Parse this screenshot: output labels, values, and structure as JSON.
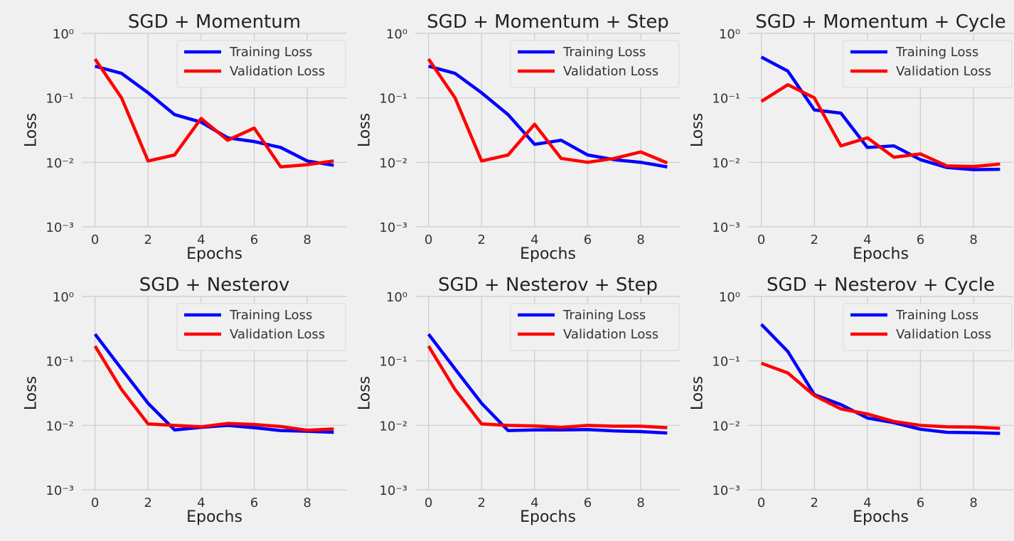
{
  "chart_data": [
    {
      "type": "line",
      "title": "SGD + Momentum",
      "xlabel": "Epochs",
      "ylabel": "Loss",
      "yscale": "log",
      "ylim": [
        0.001,
        1
      ],
      "xlim": [
        -0.5,
        9.5
      ],
      "grid": true,
      "legend": "top-right",
      "x": [
        0,
        1,
        2,
        3,
        4,
        5,
        6,
        7,
        8,
        9
      ],
      "series": [
        {
          "name": "Training Loss",
          "color": "#0000ff",
          "values": [
            0.31,
            0.24,
            0.12,
            0.055,
            0.042,
            0.024,
            0.021,
            0.017,
            0.0105,
            0.009
          ]
        },
        {
          "name": "Validation Loss",
          "color": "#ff0000",
          "values": [
            0.4,
            0.1,
            0.0105,
            0.013,
            0.048,
            0.022,
            0.034,
            0.0085,
            0.0092,
            0.0105
          ]
        }
      ]
    },
    {
      "type": "line",
      "title": "SGD + Momentum + Step",
      "xlabel": "Epochs",
      "ylabel": "Loss",
      "yscale": "log",
      "ylim": [
        0.001,
        1
      ],
      "xlim": [
        -0.5,
        9.5
      ],
      "grid": true,
      "legend": "top-right",
      "x": [
        0,
        1,
        2,
        3,
        4,
        5,
        6,
        7,
        8,
        9
      ],
      "series": [
        {
          "name": "Training Loss",
          "color": "#0000ff",
          "values": [
            0.31,
            0.24,
            0.12,
            0.055,
            0.019,
            0.022,
            0.013,
            0.011,
            0.01,
            0.0085
          ]
        },
        {
          "name": "Validation Loss",
          "color": "#ff0000",
          "values": [
            0.4,
            0.1,
            0.0105,
            0.013,
            0.039,
            0.0115,
            0.01,
            0.0115,
            0.0145,
            0.0098
          ]
        }
      ]
    },
    {
      "type": "line",
      "title": "SGD + Momentum + Cycle",
      "xlabel": "Epochs",
      "ylabel": "Loss",
      "yscale": "log",
      "ylim": [
        0.001,
        1
      ],
      "xlim": [
        -0.5,
        9.5
      ],
      "grid": true,
      "legend": "top-right",
      "x": [
        0,
        1,
        2,
        3,
        4,
        5,
        6,
        7,
        8,
        9
      ],
      "series": [
        {
          "name": "Training Loss",
          "color": "#0000ff",
          "values": [
            0.43,
            0.26,
            0.065,
            0.058,
            0.017,
            0.018,
            0.011,
            0.0083,
            0.0077,
            0.0078
          ]
        },
        {
          "name": "Validation Loss",
          "color": "#ff0000",
          "values": [
            0.088,
            0.16,
            0.1,
            0.018,
            0.024,
            0.012,
            0.0135,
            0.0088,
            0.0086,
            0.0094
          ]
        }
      ]
    },
    {
      "type": "line",
      "title": "SGD + Nesterov",
      "xlabel": "Epochs",
      "ylabel": "Loss",
      "yscale": "log",
      "ylim": [
        0.001,
        1
      ],
      "xlim": [
        -0.5,
        9.5
      ],
      "grid": true,
      "legend": "top-right",
      "x": [
        0,
        1,
        2,
        3,
        4,
        5,
        6,
        7,
        8,
        9
      ],
      "series": [
        {
          "name": "Training Loss",
          "color": "#0000ff",
          "values": [
            0.26,
            0.075,
            0.022,
            0.0085,
            0.0093,
            0.01,
            0.0092,
            0.0083,
            0.0081,
            0.0078
          ]
        },
        {
          "name": "Validation Loss",
          "color": "#ff0000",
          "values": [
            0.17,
            0.036,
            0.0105,
            0.01,
            0.0095,
            0.0107,
            0.0103,
            0.0096,
            0.0084,
            0.0088
          ]
        }
      ]
    },
    {
      "type": "line",
      "title": "SGD + Nesterov + Step",
      "xlabel": "Epochs",
      "ylabel": "Loss",
      "yscale": "log",
      "ylim": [
        0.001,
        1
      ],
      "xlim": [
        -0.5,
        9.5
      ],
      "grid": true,
      "legend": "top-right",
      "x": [
        0,
        1,
        2,
        3,
        4,
        5,
        6,
        7,
        8,
        9
      ],
      "series": [
        {
          "name": "Training Loss",
          "color": "#0000ff",
          "values": [
            0.26,
            0.075,
            0.022,
            0.0083,
            0.0085,
            0.0085,
            0.0086,
            0.0082,
            0.008,
            0.0076
          ]
        },
        {
          "name": "Validation Loss",
          "color": "#ff0000",
          "values": [
            0.17,
            0.036,
            0.0105,
            0.01,
            0.0098,
            0.0093,
            0.01,
            0.0097,
            0.0097,
            0.0092
          ]
        }
      ]
    },
    {
      "type": "line",
      "title": "SGD + Nesterov + Cycle",
      "xlabel": "Epochs",
      "ylabel": "Loss",
      "yscale": "log",
      "ylim": [
        0.001,
        1
      ],
      "xlim": [
        -0.5,
        9.5
      ],
      "grid": true,
      "legend": "top-right",
      "x": [
        0,
        1,
        2,
        3,
        4,
        5,
        6,
        7,
        8,
        9
      ],
      "series": [
        {
          "name": "Training Loss",
          "color": "#0000ff",
          "values": [
            0.37,
            0.14,
            0.03,
            0.021,
            0.013,
            0.011,
            0.0087,
            0.0078,
            0.0077,
            0.0075
          ]
        },
        {
          "name": "Validation Loss",
          "color": "#ff0000",
          "values": [
            0.092,
            0.065,
            0.029,
            0.018,
            0.015,
            0.0115,
            0.01,
            0.0095,
            0.0094,
            0.009
          ]
        }
      ]
    }
  ]
}
